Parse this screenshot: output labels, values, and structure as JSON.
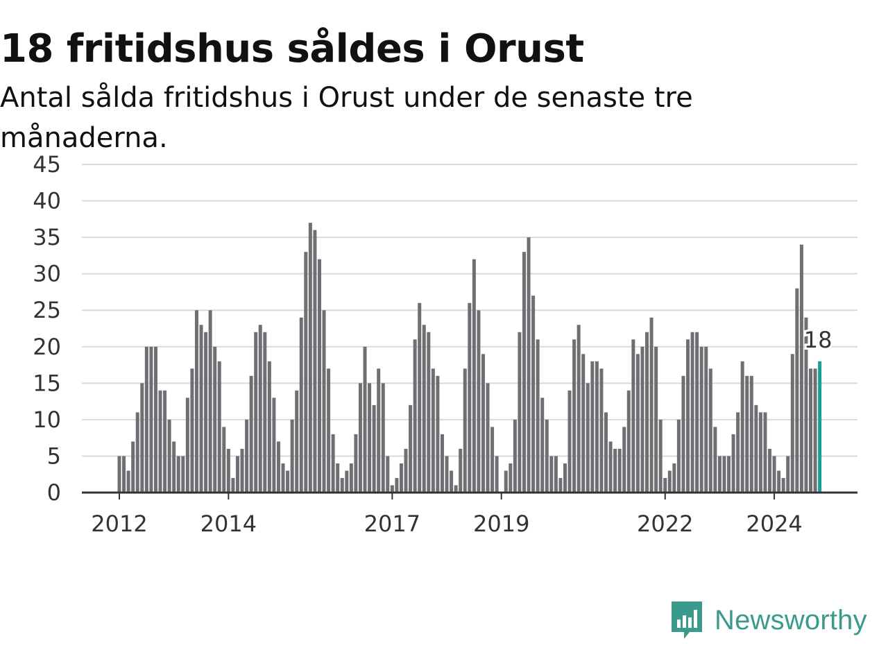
{
  "title": "18 fritidshus såldes i Orust",
  "subtitle": "Antal sålda fritidshus i Orust under de senaste tre månaderna.",
  "brand": "Newsworthy",
  "colors": {
    "bar": "#6f6e73",
    "highlight": "#1a9f91",
    "grid": "#d9d9d9",
    "axis": "#333333",
    "brand": "#3a9b8c"
  },
  "chart_data": {
    "type": "bar",
    "ylim": [
      0,
      45
    ],
    "y_ticks": [
      0,
      5,
      10,
      15,
      20,
      25,
      30,
      35,
      40,
      45
    ],
    "x_tick_labels": [
      {
        "label": "2012",
        "index": 0
      },
      {
        "label": "2014",
        "index": 24
      },
      {
        "label": "2017",
        "index": 60
      },
      {
        "label": "2019",
        "index": 84
      },
      {
        "label": "2022",
        "index": 120
      },
      {
        "label": "2024",
        "index": 144
      }
    ],
    "highlight": {
      "index": 154,
      "value": 18,
      "label": "18"
    },
    "values": [
      5,
      5,
      3,
      7,
      11,
      15,
      20,
      20,
      20,
      14,
      14,
      10,
      7,
      5,
      5,
      13,
      17,
      25,
      23,
      22,
      25,
      20,
      18,
      9,
      6,
      2,
      5,
      6,
      10,
      16,
      22,
      23,
      22,
      18,
      13,
      7,
      4,
      3,
      10,
      14,
      24,
      33,
      37,
      36,
      32,
      25,
      17,
      8,
      4,
      2,
      3,
      4,
      8,
      15,
      20,
      15,
      12,
      17,
      15,
      5,
      1,
      2,
      4,
      6,
      12,
      21,
      26,
      23,
      22,
      17,
      16,
      8,
      5,
      3,
      1,
      6,
      17,
      26,
      32,
      25,
      19,
      15,
      9,
      5,
      0,
      3,
      4,
      10,
      22,
      33,
      35,
      27,
      21,
      13,
      10,
      5,
      5,
      2,
      4,
      14,
      21,
      23,
      19,
      15,
      18,
      18,
      17,
      11,
      7,
      6,
      6,
      9,
      14,
      21,
      19,
      20,
      22,
      24,
      20,
      10,
      2,
      3,
      4,
      10,
      16,
      21,
      22,
      22,
      20,
      20,
      17,
      9,
      5,
      5,
      5,
      8,
      11,
      18,
      16,
      16,
      12,
      11,
      11,
      6,
      5,
      3,
      2,
      5,
      19,
      28,
      34,
      24,
      17,
      17,
      18
    ]
  }
}
